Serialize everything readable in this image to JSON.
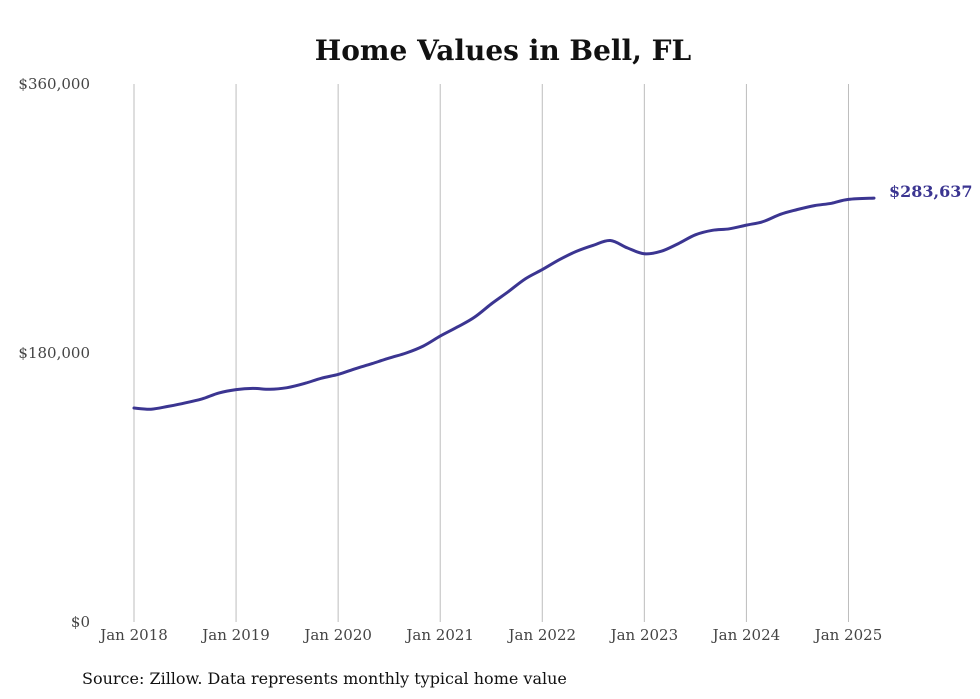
{
  "chart_data": {
    "type": "line",
    "title": "Home Values in Bell, FL",
    "xlabel": "",
    "ylabel": "",
    "ylim": [
      0,
      360000
    ],
    "xlim": [
      "2018-01",
      "2025-04"
    ],
    "y_ticks": [
      {
        "value": 0,
        "label": "$0"
      },
      {
        "value": 180000,
        "label": "$180,000"
      },
      {
        "value": 360000,
        "label": "$360,000"
      }
    ],
    "x_ticks": [
      {
        "value": "2018-01",
        "label": "Jan 2018"
      },
      {
        "value": "2019-01",
        "label": "Jan 2019"
      },
      {
        "value": "2020-01",
        "label": "Jan 2020"
      },
      {
        "value": "2021-01",
        "label": "Jan 2021"
      },
      {
        "value": "2022-01",
        "label": "Jan 2022"
      },
      {
        "value": "2023-01",
        "label": "Jan 2023"
      },
      {
        "value": "2024-01",
        "label": "Jan 2024"
      },
      {
        "value": "2025-01",
        "label": "Jan 2025"
      }
    ],
    "grid": {
      "vertical": true,
      "horizontal": false
    },
    "legend": "none",
    "series": [
      {
        "color": "#3b3591",
        "end_label": "$283,637",
        "points": [
          [
            "2018-01",
            143200
          ],
          [
            "2018-03",
            142400
          ],
          [
            "2018-05",
            144300
          ],
          [
            "2018-07",
            146600
          ],
          [
            "2018-09",
            149300
          ],
          [
            "2018-11",
            153300
          ],
          [
            "2019-01",
            155500
          ],
          [
            "2019-03",
            156300
          ],
          [
            "2019-05",
            155700
          ],
          [
            "2019-07",
            156800
          ],
          [
            "2019-09",
            159500
          ],
          [
            "2019-11",
            163100
          ],
          [
            "2020-01",
            165700
          ],
          [
            "2020-03",
            169400
          ],
          [
            "2020-05",
            172900
          ],
          [
            "2020-07",
            176600
          ],
          [
            "2020-09",
            180000
          ],
          [
            "2020-11",
            184600
          ],
          [
            "2021-01",
            191300
          ],
          [
            "2021-03",
            197300
          ],
          [
            "2021-05",
            203800
          ],
          [
            "2021-07",
            212800
          ],
          [
            "2021-09",
            221000
          ],
          [
            "2021-11",
            229600
          ],
          [
            "2022-01",
            235800
          ],
          [
            "2022-03",
            242400
          ],
          [
            "2022-05",
            248000
          ],
          [
            "2022-07",
            252100
          ],
          [
            "2022-09",
            255300
          ],
          [
            "2022-11",
            250300
          ],
          [
            "2023-01",
            246400
          ],
          [
            "2023-03",
            248100
          ],
          [
            "2023-05",
            253200
          ],
          [
            "2023-07",
            259100
          ],
          [
            "2023-09",
            262100
          ],
          [
            "2023-11",
            263100
          ],
          [
            "2024-01",
            265600
          ],
          [
            "2024-03",
            268000
          ],
          [
            "2024-05",
            272800
          ],
          [
            "2024-07",
            276000
          ],
          [
            "2024-09",
            278600
          ],
          [
            "2024-11",
            280200
          ],
          [
            "2025-01",
            282800
          ],
          [
            "2025-04",
            283637
          ]
        ]
      }
    ]
  },
  "footer": {
    "source": "Source: Zillow. Data represents monthly typical home value"
  }
}
